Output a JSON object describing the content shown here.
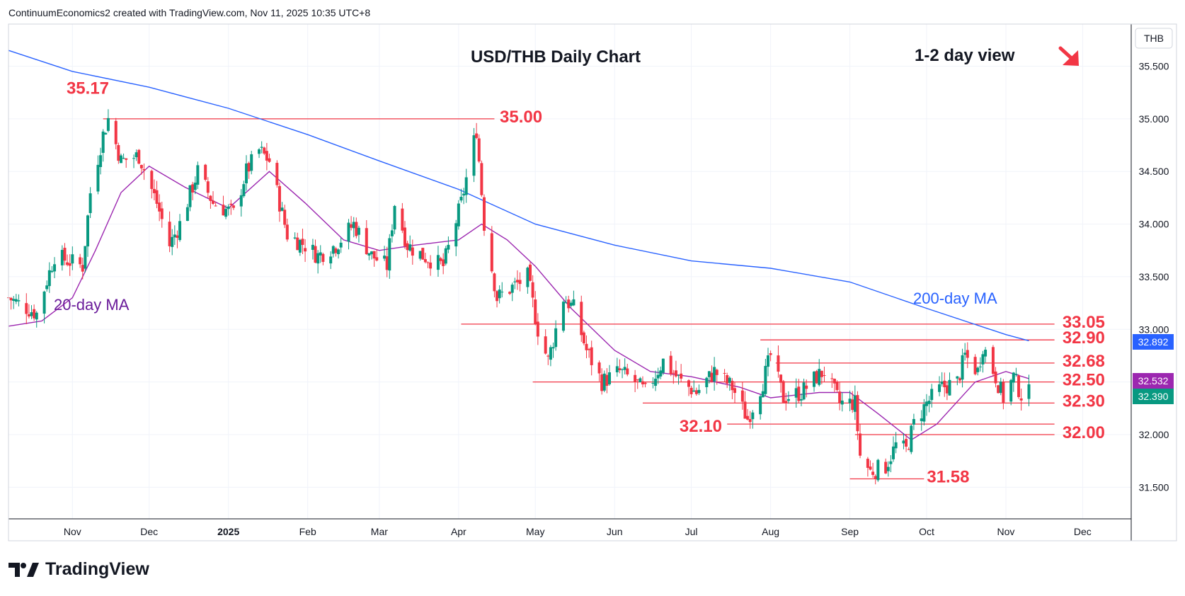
{
  "attribution": "ContinuumEconomics2 created with TradingView.com, Nov 11, 2025 10:35 UTC+8",
  "footer_logo_text": "TradingView",
  "colors": {
    "candle_up": "#089981",
    "candle_down": "#f23645",
    "ma200": "#2962ff",
    "ma20": "#9c27b0",
    "levels": "#f23645",
    "current_price": "#089981",
    "arrow": "#f23645"
  },
  "chart_data": {
    "type": "candlestick",
    "title": "USD/THB Daily Chart",
    "view_label": "1-2 day view",
    "view_direction": "down",
    "currency": "THB",
    "ylim": [
      31.2,
      35.9
    ],
    "y_ticks": [
      "35.500",
      "35.000",
      "34.500",
      "34.000",
      "33.500",
      "33.000",
      "32.500",
      "32.000",
      "31.500"
    ],
    "x_months": [
      {
        "label": "Nov",
        "date": "2024-11-01"
      },
      {
        "label": "Dec",
        "date": "2024-12-01"
      },
      {
        "label": "2025",
        "date": "2025-01-01",
        "bold": true
      },
      {
        "label": "Feb",
        "date": "2025-02-01"
      },
      {
        "label": "Mar",
        "date": "2025-03-01"
      },
      {
        "label": "Apr",
        "date": "2025-04-01"
      },
      {
        "label": "May",
        "date": "2025-05-01"
      },
      {
        "label": "Jun",
        "date": "2025-06-01"
      },
      {
        "label": "Jul",
        "date": "2025-07-01"
      },
      {
        "label": "Aug",
        "date": "2025-08-01"
      },
      {
        "label": "Sep",
        "date": "2025-09-01"
      },
      {
        "label": "Oct",
        "date": "2025-10-01"
      },
      {
        "label": "Nov",
        "date": "2025-11-01"
      },
      {
        "label": "Dec",
        "date": "2025-12-01"
      }
    ],
    "x_range": [
      "2024-10-07",
      "2025-12-20"
    ],
    "price_path": [
      [
        "2024-10-07",
        33.3
      ],
      [
        "2024-10-18",
        33.15
      ],
      [
        "2024-10-25",
        33.7
      ],
      [
        "2024-11-05",
        33.6
      ],
      [
        "2024-11-08",
        34.3
      ],
      [
        "2024-11-13",
        34.85
      ],
      [
        "2024-11-15",
        35.0
      ],
      [
        "2024-11-20",
        34.6
      ],
      [
        "2024-11-27",
        34.65
      ],
      [
        "2024-12-04",
        34.2
      ],
      [
        "2024-12-09",
        33.8
      ],
      [
        "2024-12-13",
        34.0
      ],
      [
        "2024-12-20",
        34.5
      ],
      [
        "2024-12-26",
        34.2
      ],
      [
        "2025-01-03",
        34.1
      ],
      [
        "2025-01-08",
        34.5
      ],
      [
        "2025-01-13",
        34.7
      ],
      [
        "2025-01-17",
        34.6
      ],
      [
        "2025-01-24",
        33.9
      ],
      [
        "2025-01-31",
        33.8
      ],
      [
        "2025-02-05",
        33.7
      ],
      [
        "2025-02-12",
        33.8
      ],
      [
        "2025-02-19",
        34.0
      ],
      [
        "2025-02-26",
        33.7
      ],
      [
        "2025-03-04",
        33.6
      ],
      [
        "2025-03-07",
        34.2
      ],
      [
        "2025-03-12",
        33.8
      ],
      [
        "2025-03-18",
        33.7
      ],
      [
        "2025-03-26",
        33.6
      ],
      [
        "2025-04-02",
        34.2
      ],
      [
        "2025-04-08",
        34.9
      ],
      [
        "2025-04-11",
        34.0
      ],
      [
        "2025-04-16",
        33.3
      ],
      [
        "2025-04-22",
        33.4
      ],
      [
        "2025-04-28",
        33.5
      ],
      [
        "2025-05-02",
        33.0
      ],
      [
        "2025-05-06",
        32.7
      ],
      [
        "2025-05-12",
        33.3
      ],
      [
        "2025-05-16",
        33.2
      ],
      [
        "2025-05-21",
        32.8
      ],
      [
        "2025-05-27",
        32.5
      ],
      [
        "2025-06-03",
        32.6
      ],
      [
        "2025-06-09",
        32.5
      ],
      [
        "2025-06-13",
        32.4
      ],
      [
        "2025-06-20",
        32.7
      ],
      [
        "2025-06-27",
        32.5
      ],
      [
        "2025-07-03",
        32.4
      ],
      [
        "2025-07-10",
        32.6
      ],
      [
        "2025-07-17",
        32.45
      ],
      [
        "2025-07-23",
        32.15
      ],
      [
        "2025-07-29",
        32.5
      ],
      [
        "2025-08-01",
        32.75
      ],
      [
        "2025-08-06",
        32.35
      ],
      [
        "2025-08-13",
        32.4
      ],
      [
        "2025-08-19",
        32.55
      ],
      [
        "2025-08-22",
        32.6
      ],
      [
        "2025-08-28",
        32.3
      ],
      [
        "2025-09-03",
        32.3
      ],
      [
        "2025-09-05",
        31.8
      ],
      [
        "2025-09-09",
        31.65
      ],
      [
        "2025-09-15",
        31.7
      ],
      [
        "2025-09-19",
        31.9
      ],
      [
        "2025-09-23",
        31.85
      ],
      [
        "2025-09-26",
        32.1
      ],
      [
        "2025-10-01",
        32.3
      ],
      [
        "2025-10-07",
        32.45
      ],
      [
        "2025-10-13",
        32.5
      ],
      [
        "2025-10-16",
        32.75
      ],
      [
        "2025-10-21",
        32.6
      ],
      [
        "2025-10-23",
        32.85
      ],
      [
        "2025-10-28",
        32.55
      ],
      [
        "2025-10-31",
        32.35
      ],
      [
        "2025-11-04",
        32.55
      ],
      [
        "2025-11-07",
        32.38
      ],
      [
        "2025-11-10",
        32.39
      ]
    ],
    "ma200": [
      [
        "2024-10-07",
        35.65
      ],
      [
        "2024-11-01",
        35.45
      ],
      [
        "2024-12-01",
        35.3
      ],
      [
        "2025-01-01",
        35.1
      ],
      [
        "2025-02-01",
        34.85
      ],
      [
        "2025-03-01",
        34.6
      ],
      [
        "2025-04-01",
        34.33
      ],
      [
        "2025-05-01",
        34.0
      ],
      [
        "2025-06-01",
        33.8
      ],
      [
        "2025-07-01",
        33.65
      ],
      [
        "2025-08-01",
        33.58
      ],
      [
        "2025-09-01",
        33.45
      ],
      [
        "2025-10-01",
        33.2
      ],
      [
        "2025-11-01",
        32.95
      ],
      [
        "2025-11-10",
        32.892
      ]
    ],
    "ma20": [
      [
        "2024-10-07",
        33.03
      ],
      [
        "2024-10-20",
        33.08
      ],
      [
        "2024-11-01",
        33.3
      ],
      [
        "2024-11-10",
        33.75
      ],
      [
        "2024-11-20",
        34.3
      ],
      [
        "2024-12-01",
        34.55
      ],
      [
        "2024-12-15",
        34.35
      ],
      [
        "2025-01-01",
        34.15
      ],
      [
        "2025-01-17",
        34.5
      ],
      [
        "2025-01-31",
        34.2
      ],
      [
        "2025-02-15",
        33.85
      ],
      [
        "2025-03-01",
        33.75
      ],
      [
        "2025-03-15",
        33.8
      ],
      [
        "2025-04-01",
        33.85
      ],
      [
        "2025-04-10",
        34.0
      ],
      [
        "2025-04-20",
        33.85
      ],
      [
        "2025-05-01",
        33.6
      ],
      [
        "2025-05-15",
        33.2
      ],
      [
        "2025-06-01",
        32.8
      ],
      [
        "2025-06-15",
        32.6
      ],
      [
        "2025-07-01",
        32.55
      ],
      [
        "2025-07-20",
        32.45
      ],
      [
        "2025-08-01",
        32.35
      ],
      [
        "2025-08-20",
        32.4
      ],
      [
        "2025-09-01",
        32.4
      ],
      [
        "2025-09-12",
        32.2
      ],
      [
        "2025-09-25",
        31.95
      ],
      [
        "2025-10-05",
        32.1
      ],
      [
        "2025-10-20",
        32.5
      ],
      [
        "2025-11-01",
        32.6
      ],
      [
        "2025-11-10",
        32.532
      ]
    ],
    "ma_labels": {
      "ma200": "200-day MA",
      "ma20": "20-day MA"
    },
    "current_values": {
      "ma200": "32.892",
      "ma20": "32.532",
      "price": "32.390"
    },
    "levels": [
      {
        "label": "35.17",
        "value": 35.17,
        "line_from": null,
        "line_to": null,
        "label_date": "2024-11-07",
        "label_side": "above"
      },
      {
        "label": "35.00",
        "value": 35.0,
        "line_from": "2024-11-13",
        "line_to": "2025-04-15",
        "label_date": "2025-04-16",
        "label_side": "right"
      },
      {
        "label": "33.05",
        "value": 33.05,
        "line_from": "2025-04-02",
        "line_to": "2025-11-20",
        "label_date": "2025-11-22",
        "label_side": "right"
      },
      {
        "label": "32.90",
        "value": 32.9,
        "line_from": "2025-07-28",
        "line_to": "2025-11-20",
        "label_date": "2025-11-22",
        "label_side": "right"
      },
      {
        "label": "32.68",
        "value": 32.68,
        "line_from": "2025-08-03",
        "line_to": "2025-11-20",
        "label_date": "2025-11-22",
        "label_side": "right"
      },
      {
        "label": "32.50",
        "value": 32.5,
        "line_from": "2025-04-30",
        "line_to": "2025-11-20",
        "label_date": "2025-11-22",
        "label_side": "right"
      },
      {
        "label": "32.30",
        "value": 32.3,
        "line_from": "2025-06-12",
        "line_to": "2025-11-20",
        "label_date": "2025-11-22",
        "label_side": "right"
      },
      {
        "label": "32.10",
        "value": 32.1,
        "line_from": "2025-07-15",
        "line_to": "2025-11-20",
        "label_date": "2025-07-13",
        "label_side": "left"
      },
      {
        "label": "32.00",
        "value": 32.0,
        "line_from": "2025-09-03",
        "line_to": "2025-11-20",
        "label_date": "2025-11-22",
        "label_side": "right"
      },
      {
        "label": "31.58",
        "value": 31.58,
        "line_from": "2025-09-01",
        "line_to": "2025-09-30",
        "label_date": "2025-09-30",
        "label_side": "right"
      }
    ]
  }
}
